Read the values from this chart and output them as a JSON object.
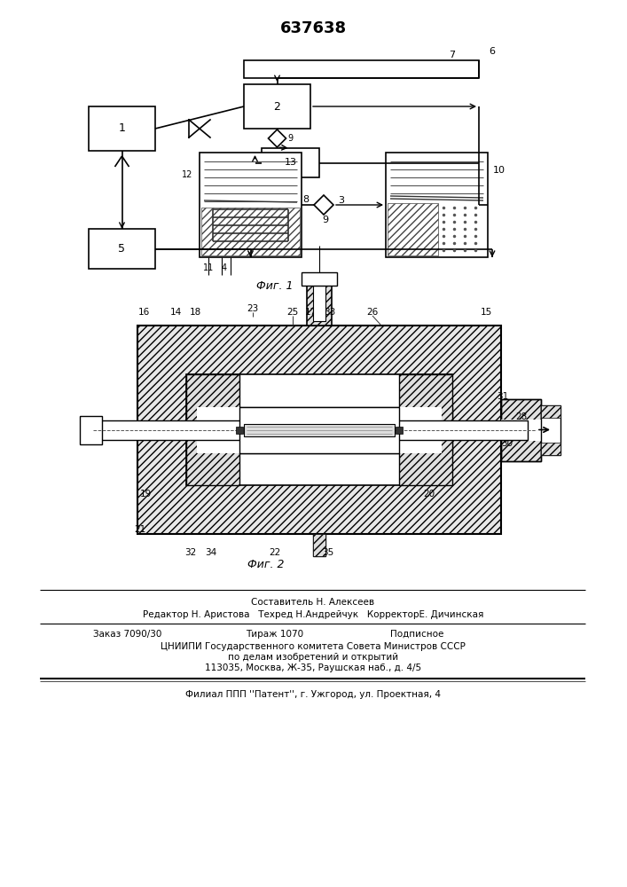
{
  "title_number": "637638",
  "fig1_label": "Фиг. 1",
  "fig2_label": "Фиг. 2",
  "footer_line1": "Составитель Н. Алексеев",
  "footer_line2": "Редактор Н. Аристова   Техред Н.Андрейчук   КорректорЕ. Дичинская",
  "footer_line3a": "Заказ 7090/30",
  "footer_line3b": "Тираж 1070",
  "footer_line3c": "Подписное",
  "footer_line4": "ЦНИИПИ Государственного комитета Совета Министров СССР",
  "footer_line5": "по делам изобретений и открытий",
  "footer_line6": "113035, Москва, Ж-35, Раушская наб., д. 4/5",
  "footer_line7": "Филиал ППП ''Патент'', г. Ужгород, ул. Проектная, 4",
  "bg_color": "#ffffff",
  "lc": "#000000"
}
